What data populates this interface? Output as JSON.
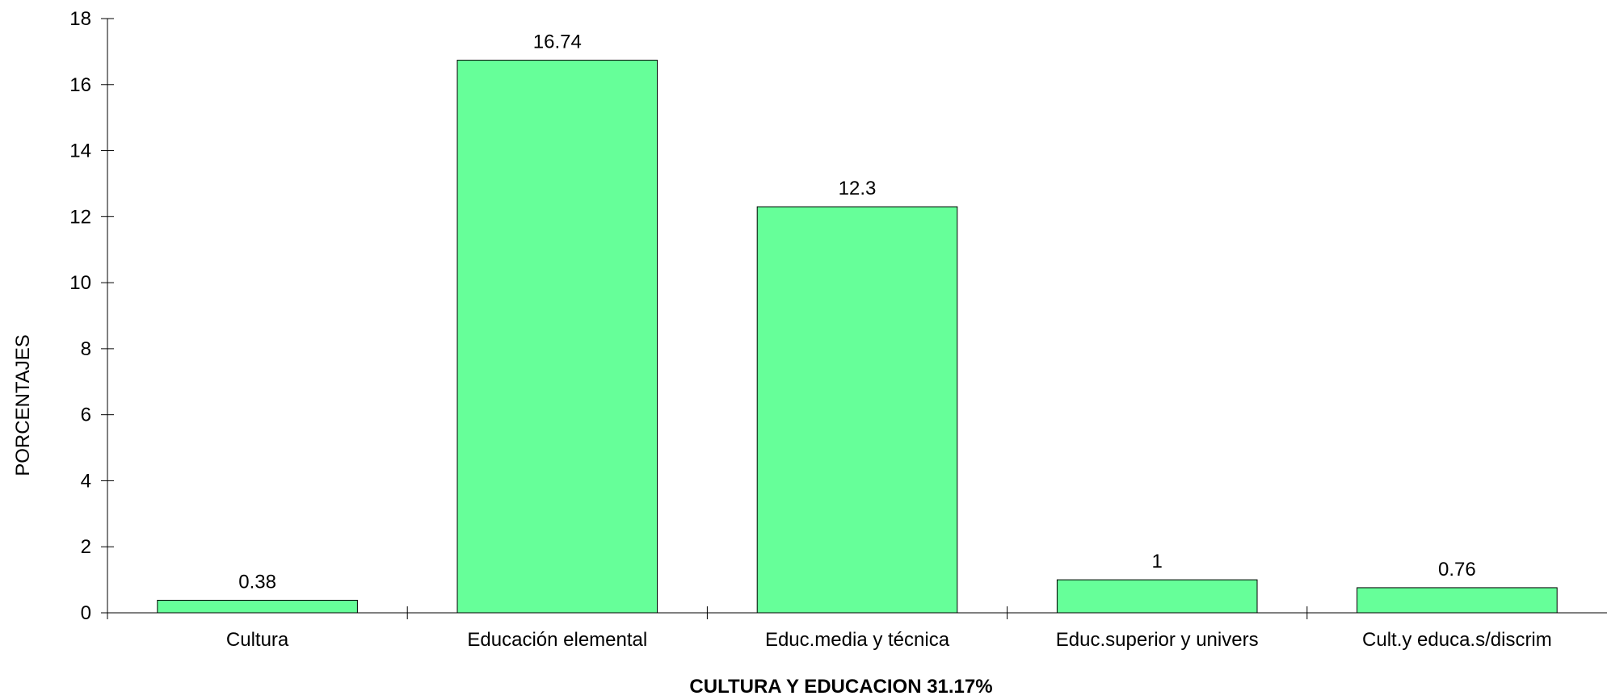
{
  "chart_data": {
    "type": "bar",
    "categories": [
      "Cultura",
      "Educación elemental",
      "Educ.media y técnica",
      "Educ.superior y univers",
      "Cult.y educa.s/discrim"
    ],
    "values": [
      0.38,
      16.74,
      12.3,
      1,
      0.76
    ],
    "data_labels": [
      "0.38",
      "16.74",
      "12.3",
      "1",
      "0.76"
    ],
    "xlabel": "CULTURA Y EDUCACION 31.17%",
    "ylabel": "PORCENTAJES",
    "ylim": [
      0,
      18
    ],
    "yticks": [
      0,
      2,
      4,
      6,
      8,
      10,
      12,
      14,
      16,
      18
    ],
    "grid": false,
    "bar_color": "#66ff99",
    "bar_edge_color": "#000000"
  }
}
